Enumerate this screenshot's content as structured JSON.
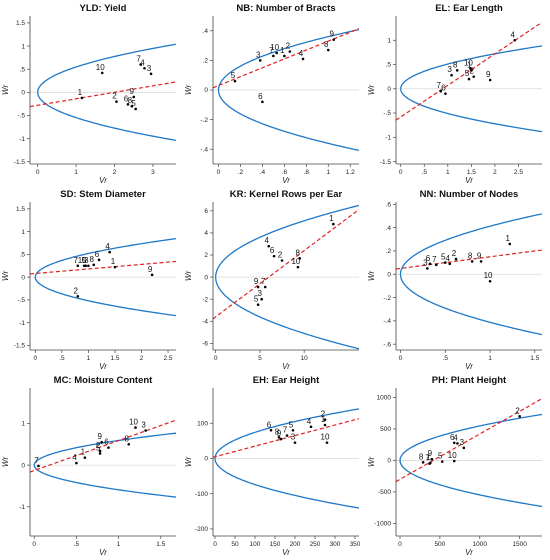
{
  "colors": {
    "parabola": "#1f78c8",
    "regression": "#e02020",
    "points": "#000000",
    "zero_line": "#d9d9d9",
    "axes": "#444444"
  },
  "chart_data": [
    {
      "type": "scatter",
      "title": "YLD: Yield",
      "xlabel": "Vr",
      "ylabel": "Wr",
      "xlim": [
        -0.2,
        3.6
      ],
      "ylim": [
        -1.55,
        1.65
      ],
      "xticks": [
        0,
        1,
        2,
        3
      ],
      "yticks": [
        -1.5,
        -1,
        -0.5,
        0,
        0.5,
        1,
        1.5
      ],
      "reg": {
        "a": -0.28,
        "b": 0.14
      },
      "parabola": {
        "w0r0": 0.3
      },
      "points": [
        {
          "label": "1",
          "x": 1.15,
          "y": -0.12
        },
        {
          "label": "2",
          "x": 2.05,
          "y": -0.2
        },
        {
          "label": "3",
          "x": 2.95,
          "y": 0.4
        },
        {
          "label": "4",
          "x": 2.78,
          "y": 0.52
        },
        {
          "label": "5",
          "x": 2.55,
          "y": -0.36
        },
        {
          "label": "6",
          "x": 2.35,
          "y": -0.26
        },
        {
          "label": "7",
          "x": 2.68,
          "y": 0.6
        },
        {
          "label": "8",
          "x": 2.45,
          "y": -0.3
        },
        {
          "label": "9",
          "x": 2.5,
          "y": -0.1
        },
        {
          "label": "10",
          "x": 1.68,
          "y": 0.42
        }
      ]
    },
    {
      "type": "scatter",
      "title": "NB: Number of Bracts",
      "xlabel": "Vr",
      "ylabel": "Wr",
      "xlim": [
        -0.05,
        1.28
      ],
      "ylim": [
        -0.5,
        0.5
      ],
      "xticks": [
        0,
        0.2,
        0.4,
        0.6,
        0.8,
        1,
        1.2
      ],
      "yticks": [
        -0.4,
        -0.2,
        0,
        0.2,
        0.4
      ],
      "reg": {
        "a": 0.03,
        "b": 0.3
      },
      "parabola": {
        "w0r0": 0.13
      },
      "points": [
        {
          "label": "1",
          "x": 0.6,
          "y": 0.23
        },
        {
          "label": "2",
          "x": 0.65,
          "y": 0.26
        },
        {
          "label": "3",
          "x": 0.38,
          "y": 0.2
        },
        {
          "label": "4",
          "x": 0.77,
          "y": 0.21
        },
        {
          "label": "5",
          "x": 0.15,
          "y": 0.06
        },
        {
          "label": "6",
          "x": 0.4,
          "y": -0.08
        },
        {
          "label": "7",
          "x": 0.5,
          "y": 0.23
        },
        {
          "label": "8",
          "x": 1.0,
          "y": 0.27
        },
        {
          "label": "9",
          "x": 1.05,
          "y": 0.34
        },
        {
          "label": "10",
          "x": 0.53,
          "y": 0.25
        }
      ]
    },
    {
      "type": "scatter",
      "title": "EL: Ear Length",
      "xlabel": "Vr",
      "ylabel": "Wr",
      "xlim": [
        -0.1,
        3.0
      ],
      "ylim": [
        -1.55,
        1.5
      ],
      "xticks": [
        0,
        0.5,
        1,
        1.5,
        2,
        2.5
      ],
      "yticks": [
        -1.5,
        -1,
        -0.5,
        0,
        0.5,
        1
      ],
      "reg": {
        "a": -0.58,
        "b": 0.65
      },
      "parabola": {
        "w0r0": 0.26
      },
      "points": [
        {
          "label": "1",
          "x": 1.5,
          "y": 0.38
        },
        {
          "label": "2",
          "x": 1.55,
          "y": 0.25
        },
        {
          "label": "3",
          "x": 1.08,
          "y": 0.28
        },
        {
          "label": "4",
          "x": 2.42,
          "y": 1.0
        },
        {
          "label": "5",
          "x": 1.45,
          "y": 0.2
        },
        {
          "label": "6",
          "x": 0.95,
          "y": -0.1
        },
        {
          "label": "7",
          "x": 0.85,
          "y": -0.05
        },
        {
          "label": "8",
          "x": 1.2,
          "y": 0.38
        },
        {
          "label": "9",
          "x": 1.9,
          "y": 0.18
        },
        {
          "label": "10",
          "x": 1.48,
          "y": 0.42
        }
      ]
    },
    {
      "type": "scatter",
      "title": "SD: Stem Diameter",
      "xlabel": "Vr",
      "ylabel": "Wr",
      "xlim": [
        -0.1,
        2.65
      ],
      "ylim": [
        -1.6,
        1.65
      ],
      "xticks": [
        0,
        0.5,
        1,
        1.5,
        2,
        2.5
      ],
      "yticks": [
        -1.5,
        -1,
        -0.5,
        0,
        0.5,
        1,
        1.5
      ],
      "reg": {
        "a": 0.08,
        "b": 0.1
      },
      "parabola": {
        "w0r0": 0.27
      },
      "points": [
        {
          "label": "1",
          "x": 1.5,
          "y": 0.22
        },
        {
          "label": "2",
          "x": 0.8,
          "y": -0.42
        },
        {
          "label": "3",
          "x": 1.0,
          "y": 0.25
        },
        {
          "label": "4",
          "x": 1.4,
          "y": 0.55
        },
        {
          "label": "5",
          "x": 0.95,
          "y": 0.25
        },
        {
          "label": "6",
          "x": 1.2,
          "y": 0.38
        },
        {
          "label": "7",
          "x": 0.8,
          "y": 0.25
        },
        {
          "label": "8",
          "x": 1.1,
          "y": 0.27
        },
        {
          "label": "9",
          "x": 2.2,
          "y": 0.05
        },
        {
          "label": "10",
          "x": 0.92,
          "y": 0.25
        }
      ]
    },
    {
      "type": "scatter",
      "title": "KR: Kernel Rows per Ear",
      "xlabel": "Vr",
      "ylabel": "Wr",
      "xlim": [
        -0.3,
        16.2
      ],
      "ylim": [
        -6.6,
        6.8
      ],
      "xticks": [
        0,
        5,
        10
      ],
      "yticks": [
        -6,
        -4,
        -2,
        0,
        2,
        4,
        6
      ],
      "reg": {
        "a": -3.6,
        "b": 0.6
      },
      "parabola": {
        "w0r0": 2.6
      },
      "points": [
        {
          "label": "1",
          "x": 13.3,
          "y": 4.8
        },
        {
          "label": "2",
          "x": 7.5,
          "y": 1.5
        },
        {
          "label": "3",
          "x": 5.2,
          "y": -2.0
        },
        {
          "label": "4",
          "x": 6.0,
          "y": 2.8
        },
        {
          "label": "5",
          "x": 4.8,
          "y": -2.5
        },
        {
          "label": "6",
          "x": 6.6,
          "y": 1.9
        },
        {
          "label": "7",
          "x": 5.6,
          "y": -0.9
        },
        {
          "label": "8",
          "x": 9.5,
          "y": 1.7
        },
        {
          "label": "9",
          "x": 4.8,
          "y": -0.9
        },
        {
          "label": "10",
          "x": 9.3,
          "y": 0.9
        }
      ]
    },
    {
      "type": "scatter",
      "title": "NN: Number of Nodes",
      "xlabel": "Vr",
      "ylabel": "Wr",
      "xlim": [
        -0.05,
        1.58
      ],
      "ylim": [
        -0.65,
        0.62
      ],
      "xticks": [
        0,
        0.5,
        1,
        1.5
      ],
      "yticks": [
        -0.6,
        -0.4,
        -0.2,
        0,
        0.2,
        0.4,
        0.6
      ],
      "reg": {
        "a": 0.05,
        "b": 0.1
      },
      "parabola": {
        "w0r0": 0.17
      },
      "points": [
        {
          "label": "1",
          "x": 1.22,
          "y": 0.26
        },
        {
          "label": "2",
          "x": 0.62,
          "y": 0.13
        },
        {
          "label": "3",
          "x": 0.3,
          "y": 0.05
        },
        {
          "label": "4",
          "x": 0.55,
          "y": 0.09
        },
        {
          "label": "5",
          "x": 0.5,
          "y": 0.1
        },
        {
          "label": "6",
          "x": 0.33,
          "y": 0.09
        },
        {
          "label": "7",
          "x": 0.4,
          "y": 0.08
        },
        {
          "label": "8",
          "x": 0.8,
          "y": 0.11
        },
        {
          "label": "9",
          "x": 0.9,
          "y": 0.11
        },
        {
          "label": "10",
          "x": 1.0,
          "y": -0.06
        }
      ]
    },
    {
      "type": "scatter",
      "title": "MC: Moisture Content",
      "xlabel": "Vr",
      "ylabel": "Wr",
      "xlim": [
        -0.05,
        1.68
      ],
      "ylim": [
        -1.7,
        1.85
      ],
      "xticks": [
        0,
        0.5,
        1,
        1.5
      ],
      "yticks": [
        -1,
        0,
        1
      ],
      "reg": {
        "a": -0.13,
        "b": 0.72
      },
      "parabola": {
        "w0r0": 0.35
      },
      "points": [
        {
          "label": "1",
          "x": 0.6,
          "y": 0.18
        },
        {
          "label": "2",
          "x": 0.78,
          "y": 0.34
        },
        {
          "label": "3",
          "x": 1.32,
          "y": 0.83
        },
        {
          "label": "4",
          "x": 0.5,
          "y": 0.05
        },
        {
          "label": "5",
          "x": 0.78,
          "y": 0.28
        },
        {
          "label": "6",
          "x": 0.88,
          "y": 0.42
        },
        {
          "label": "7",
          "x": 0.05,
          "y": -0.02
        },
        {
          "label": "8",
          "x": 1.12,
          "y": 0.5
        },
        {
          "label": "9",
          "x": 0.8,
          "y": 0.55
        },
        {
          "label": "10",
          "x": 1.2,
          "y": 0.9
        }
      ]
    },
    {
      "type": "scatter",
      "title": "EH: Ear Height",
      "xlabel": "Vr",
      "ylabel": "Wr",
      "xlim": [
        -5,
        360
      ],
      "ylim": [
        -220,
        200
      ],
      "xticks": [
        0,
        50,
        100,
        150,
        200,
        250,
        300,
        350
      ],
      "yticks": [
        -200,
        -100,
        0,
        100
      ],
      "reg": {
        "a": 5,
        "b": 0.3
      },
      "parabola": {
        "w0r0": 55
      },
      "points": [
        {
          "label": "1",
          "x": 275,
          "y": 95
        },
        {
          "label": "2",
          "x": 275,
          "y": 110
        },
        {
          "label": "3",
          "x": 200,
          "y": 45
        },
        {
          "label": "4",
          "x": 240,
          "y": 90
        },
        {
          "label": "5",
          "x": 195,
          "y": 80
        },
        {
          "label": "6",
          "x": 140,
          "y": 80
        },
        {
          "label": "7",
          "x": 180,
          "y": 65
        },
        {
          "label": "8",
          "x": 160,
          "y": 60
        },
        {
          "label": "9",
          "x": 165,
          "y": 55
        },
        {
          "label": "10",
          "x": 280,
          "y": 45
        }
      ]
    },
    {
      "type": "scatter",
      "title": "PH: Plant Height",
      "xlabel": "Vr",
      "ylabel": "Wr",
      "xlim": [
        -50,
        1780
      ],
      "ylim": [
        -1200,
        1150
      ],
      "xticks": [
        0,
        500,
        1000,
        1500
      ],
      "yticks": [
        -1000,
        -500,
        0,
        500,
        1000
      ],
      "reg": {
        "a": -300,
        "b": 0.72
      },
      "parabola": {
        "w0r0": 300
      },
      "points": [
        {
          "label": "1",
          "x": 380,
          "y": -40
        },
        {
          "label": "2",
          "x": 1500,
          "y": 700
        },
        {
          "label": "3",
          "x": 800,
          "y": 200
        },
        {
          "label": "4",
          "x": 720,
          "y": 270
        },
        {
          "label": "5",
          "x": 530,
          "y": -20
        },
        {
          "label": "6",
          "x": 680,
          "y": 280
        },
        {
          "label": "7",
          "x": 370,
          "y": -50
        },
        {
          "label": "8",
          "x": 290,
          "y": -30
        },
        {
          "label": "9",
          "x": 400,
          "y": 20
        },
        {
          "label": "10",
          "x": 680,
          "y": -10
        }
      ]
    }
  ]
}
